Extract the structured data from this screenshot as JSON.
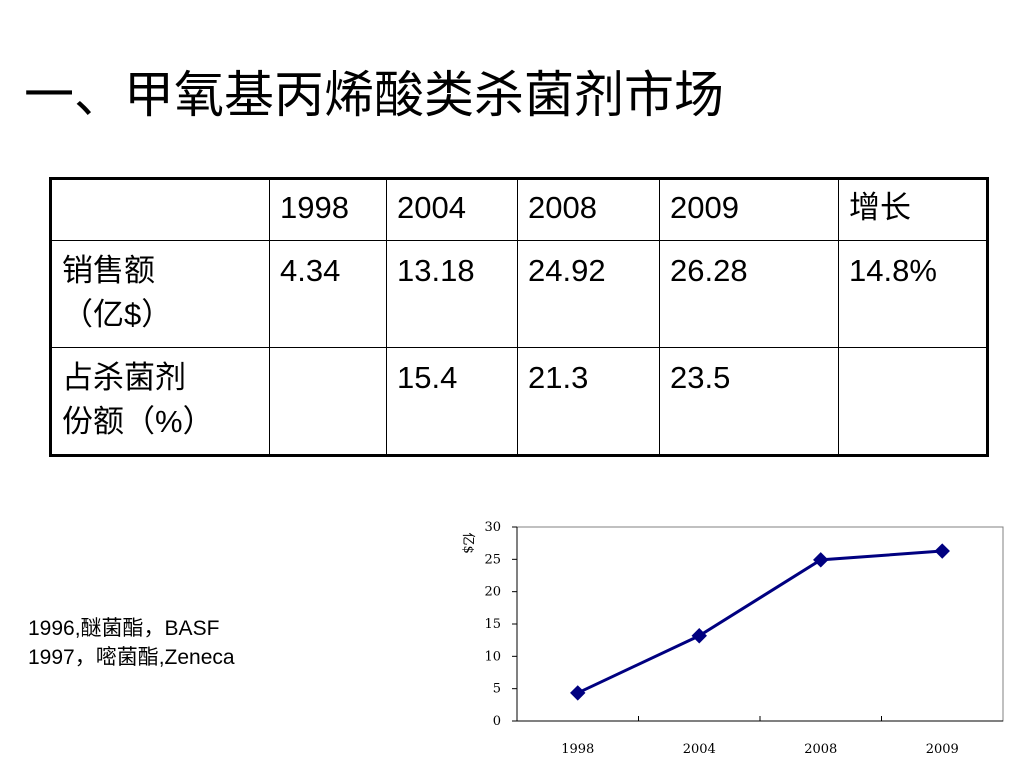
{
  "slide": {
    "title": "一、甲氧基丙烯酸类杀菌剂市场"
  },
  "table": {
    "header": [
      "",
      "1998",
      "2004",
      "2008",
      "2009",
      "增长"
    ],
    "rows": [
      {
        "label_line1": "销售额",
        "label_line2": "（亿$）",
        "cells": [
          "4.34",
          "13.18",
          "24.92",
          "26.28",
          "14.8%"
        ]
      },
      {
        "label_line1": "占杀菌剂",
        "label_line2": "份额（%）",
        "cells": [
          "",
          "15.4",
          "21.3",
          "23.5",
          ""
        ]
      }
    ]
  },
  "notes": {
    "line1": "1996,醚菌酯，BASF",
    "line2": "1997，嘧菌酯,Zeneca"
  },
  "chart_data": {
    "type": "line",
    "categories": [
      "1998",
      "2004",
      "2008",
      "2009"
    ],
    "series": [
      {
        "values": [
          4.34,
          13.18,
          24.92,
          26.28
        ]
      }
    ],
    "ylabel": "亿$",
    "ylim": [
      0,
      30
    ],
    "yticks": [
      "0",
      "5",
      "10",
      "15",
      "20",
      "25",
      "30"
    ],
    "line_color": "#000080",
    "grid": false,
    "legend": "none"
  }
}
